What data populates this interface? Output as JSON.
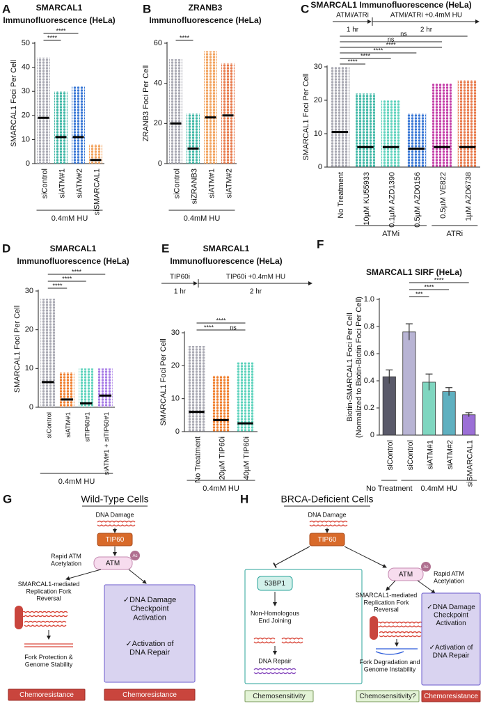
{
  "chart_data": [
    {
      "type": "dot",
      "panel": "A",
      "title": [
        "SMARCAL1",
        "Immunofluorescence (HeLa)"
      ],
      "ylabel": [
        "SMARCAL1 Foci Per Cell"
      ],
      "categories": [
        "siControl",
        "siATM#1",
        "siATM#2",
        "siSMARCAL1"
      ],
      "colors": [
        "#a9a9b3",
        "#3fb8a6",
        "#3a78d6",
        "#f2a35e"
      ],
      "means": [
        19,
        11,
        11,
        1.5
      ],
      "max_values": [
        44,
        30,
        32,
        8
      ],
      "ylim": [
        0,
        50
      ],
      "yticks": [
        0,
        10,
        20,
        30,
        40,
        50
      ],
      "significance": [
        "****",
        "****"
      ],
      "groups": [
        "0.4mM HU"
      ]
    },
    {
      "type": "dot",
      "panel": "B",
      "title": [
        "ZRANB3",
        "Immunofluorescence (HeLa)"
      ],
      "ylabel": [
        "ZRANB3 Foci Per Cell"
      ],
      "categories": [
        "siControl",
        "siZRANB3",
        "siATM#1",
        "siATM#2"
      ],
      "colors": [
        "#a9a9b3",
        "#3fb8a6",
        "#f2a35e",
        "#e8794a"
      ],
      "means": [
        20,
        7.5,
        23,
        24
      ],
      "max_values": [
        52,
        25,
        56,
        50
      ],
      "ylim": [
        0,
        60
      ],
      "yticks": [
        0,
        20,
        40,
        60
      ],
      "significance": [
        "****"
      ],
      "groups": [
        "0.4mM HU"
      ]
    },
    {
      "type": "dot",
      "panel": "C",
      "title": [
        "SMARCAL1 Immunofluorescence (HeLa)"
      ],
      "timeline": [
        "ATMi/ATRi",
        "1 hr",
        "ATMi/ATRi +0.4mM HU",
        "2 hr"
      ],
      "ylabel": [
        "SMARCAL1 Foci Per Cell"
      ],
      "categories": [
        "No Treatment",
        "10µM KU55933",
        "0.1µM AZD1390",
        "0.5µM AZD0156",
        "0.5µM VE822",
        "1µM AZD6738"
      ],
      "colors": [
        "#a9a9b3",
        "#3fb8a6",
        "#5fd3bd",
        "#3a78d6",
        "#c43ea8",
        "#e8794a"
      ],
      "means": [
        10.5,
        6,
        6,
        5.5,
        6,
        6
      ],
      "max_values": [
        30,
        22,
        20,
        16,
        25,
        26
      ],
      "ylim": [
        0,
        30
      ],
      "yticks": [
        0,
        10,
        20,
        30
      ],
      "significance": [
        "****",
        "****",
        "****",
        "****",
        "ns",
        "ns"
      ],
      "groups": [
        "ATMi",
        "ATRi"
      ]
    },
    {
      "type": "dot",
      "panel": "D",
      "title": [
        "SMARCAL1",
        "Immunofluorescence (HeLa)"
      ],
      "ylabel": [
        "SMARCAL1 Foci Per Cell"
      ],
      "categories": [
        "siControl",
        "siATM#1",
        "siTIP60#1",
        "siATM#1 + siTIP60#1"
      ],
      "colors": [
        "#a9a9b3",
        "#f07f2e",
        "#5fd3bd",
        "#a77be6"
      ],
      "means": [
        6.5,
        2,
        1,
        3
      ],
      "max_values": [
        28,
        9,
        10,
        10
      ],
      "ylim": [
        0,
        30
      ],
      "yticks": [
        0,
        10,
        20,
        30
      ],
      "significance": [
        "****",
        "****",
        "****"
      ],
      "groups": [
        "0.4mM HU"
      ]
    },
    {
      "type": "dot",
      "panel": "E",
      "title": [
        "SMARCAL1",
        "Immunofluorescence (HeLa)"
      ],
      "timeline": [
        "TIP60i",
        "1 hr",
        "TIP60i +0.4mM HU",
        "2 hr"
      ],
      "ylabel": [
        "SMARCAL1 Foci Per Cell"
      ],
      "categories": [
        "No Treatment",
        "20µM TIP60i",
        "40µM TIP60i"
      ],
      "colors": [
        "#a9a9b3",
        "#f07f2e",
        "#5fd3bd"
      ],
      "means": [
        6,
        3.5,
        2.5
      ],
      "max_values": [
        26,
        17,
        21
      ],
      "ylim": [
        0,
        30
      ],
      "yticks": [
        0,
        10,
        20,
        30
      ],
      "significance": [
        "****",
        "ns",
        "****"
      ],
      "groups": [
        "0.4mM HU"
      ]
    },
    {
      "type": "bar",
      "panel": "F",
      "title": [
        "SMARCAL1 SIRF (HeLa)"
      ],
      "ylabel": [
        "Biotin-SMARCAL1 Foci Per Cell",
        "(Normalized to Biotin-Biotin Foci Per Cell)"
      ],
      "categories": [
        "siControl",
        "siControl",
        "siATM#1",
        "siATM#2",
        "siSMARCAL1"
      ],
      "colors": [
        "#5a5a6a",
        "#b8b4d4",
        "#7fd6c0",
        "#5fb0c0",
        "#9b6fd6"
      ],
      "values": [
        0.43,
        0.76,
        0.39,
        0.32,
        0.15
      ],
      "errors": [
        0.05,
        0.06,
        0.06,
        0.03,
        0.015
      ],
      "ylim": [
        0,
        1
      ],
      "yticks": [
        0,
        0.2,
        0.4,
        0.6,
        0.8,
        {
          "value": 1,
          "label": "1.0"
        }
      ],
      "significance": [
        "***",
        "****",
        "****"
      ],
      "groups": [
        "No Treatment",
        "0.4mM HU"
      ]
    }
  ],
  "diagrams": [
    {
      "panel": "G",
      "title": "Wild-Type Cells",
      "damage": "DNA Damage",
      "tip60": "TIP60",
      "acetylation": [
        "Rapid ATM",
        "Acetylation"
      ],
      "atm": "ATM",
      "ac": "Ac",
      "reversal": [
        "SMARCAL1-mediated",
        "Replication Fork",
        "Reversal"
      ],
      "protein": "SMARCAL1",
      "outcome": [
        "Fork Protection &",
        "Genome Stability"
      ],
      "checkpoint": [
        "✓DNA Damage",
        "Checkpoint",
        "Activation"
      ],
      "repair": [
        "✓Activation of",
        "DNA Repair"
      ],
      "results": [
        "Chemoresistance",
        "Chemoresistance"
      ]
    },
    {
      "panel": "H",
      "title": "BRCA-Deficient Cells",
      "damage": "DNA Damage",
      "tip60": "TIP60",
      "bp53": "53BP1",
      "nhej": [
        "Non-Homologous",
        "End Joining"
      ],
      "dna_repair": "DNA Repair",
      "acetylation": [
        "Rapid ATM",
        "Acetylation"
      ],
      "atm": "ATM",
      "ac": "Ac",
      "reversal": [
        "SMARCAL1-mediated",
        "Replication Fork",
        "Reversal"
      ],
      "protein": "SMARCAL1",
      "outcome": [
        "Fork Degradation and",
        "Genome Instability"
      ],
      "checkpoint": [
        "✓DNA Damage",
        "Checkpoint",
        "Activation"
      ],
      "repair": [
        "✓Activation of",
        "DNA Repair"
      ],
      "results": [
        "Chemosensitivity",
        "Chemosensitivity?",
        "Chemoresistance"
      ]
    }
  ]
}
